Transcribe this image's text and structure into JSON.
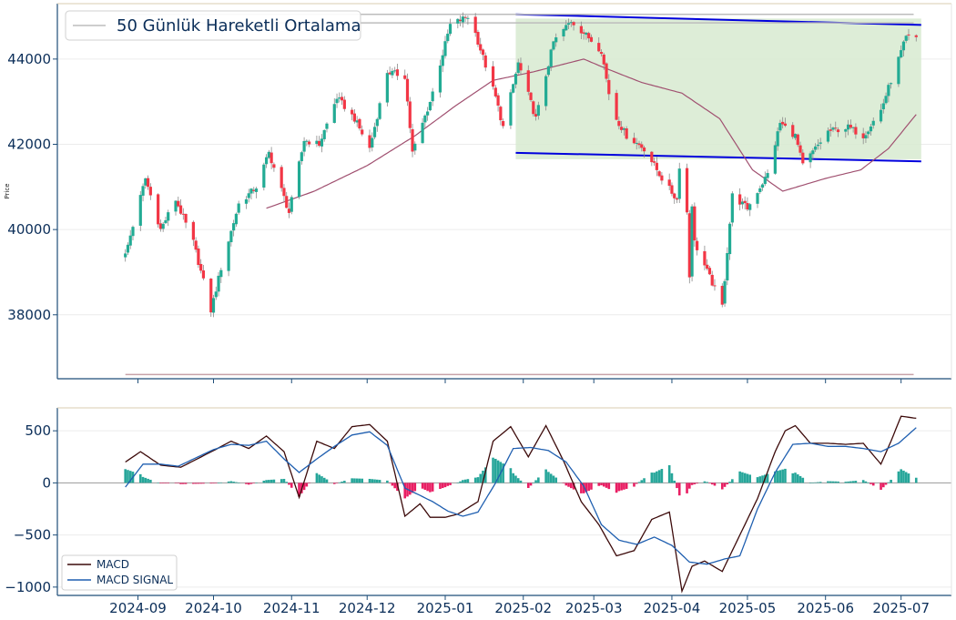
{
  "chart_data": [
    {
      "type": "candlestick",
      "ylabel": "Price",
      "ylim": [
        36500,
        45300
      ],
      "yticks": [
        38000,
        40000,
        42000,
        44000
      ],
      "x_tick_labels": [
        "2024-09",
        "2024-10",
        "2024-11",
        "2024-12",
        "2025-01",
        "2025-02",
        "2025-03",
        "2025-04",
        "2025-05",
        "2025-06",
        "2025-07"
      ],
      "legend": {
        "label": "50 Günlük Hareketli Ortalama",
        "position": "top-left"
      },
      "price_anchors": {
        "dates": [
          "2024-08-27",
          "2024-08-30",
          "2024-09-04",
          "2024-09-10",
          "2024-09-16",
          "2024-09-23",
          "2024-09-30",
          "2024-10-04",
          "2024-10-11",
          "2024-10-18",
          "2024-10-23",
          "2024-10-31",
          "2024-11-06",
          "2024-11-12",
          "2024-11-19",
          "2024-11-26",
          "2024-12-02",
          "2024-12-09",
          "2024-12-16",
          "2024-12-19",
          "2024-12-26",
          "2025-01-03",
          "2025-01-10",
          "2025-01-13",
          "2025-01-21",
          "2025-01-24",
          "2025-01-30",
          "2025-02-06",
          "2025-02-13",
          "2025-02-20",
          "2025-02-27",
          "2025-03-04",
          "2025-03-07",
          "2025-03-10",
          "2025-03-14",
          "2025-03-21",
          "2025-03-28",
          "2025-04-03",
          "2025-04-04",
          "2025-04-07",
          "2025-04-08",
          "2025-04-09",
          "2025-04-10",
          "2025-04-21",
          "2025-04-25",
          "2025-05-01",
          "2025-05-09",
          "2025-05-14",
          "2025-05-20",
          "2025-05-23",
          "2025-06-02",
          "2025-06-10",
          "2025-06-16",
          "2025-06-23",
          "2025-06-27",
          "2025-07-03",
          "2025-07-07"
        ],
        "close": [
          39400,
          40100,
          41200,
          40000,
          40700,
          39700,
          38100,
          39100,
          40600,
          41000,
          41800,
          40400,
          42100,
          42000,
          43100,
          42600,
          41900,
          43700,
          43600,
          41800,
          43000,
          44800,
          45000,
          44600,
          43100,
          42400,
          43900,
          42600,
          44400,
          44900,
          44500,
          44200,
          43200,
          42600,
          42200,
          41900,
          41200,
          40700,
          41500,
          40400,
          38900,
          40600,
          39700,
          38200,
          40800,
          40500,
          41300,
          42500,
          42200,
          41500,
          42300,
          42400,
          42200,
          42800,
          43500,
          44500,
          44500
        ]
      },
      "ma50_anchors": {
        "dates": [
          "2024-10-22",
          "2024-11-10",
          "2024-12-01",
          "2024-12-20",
          "2025-01-05",
          "2025-01-20",
          "2025-02-05",
          "2025-02-25",
          "2025-03-05",
          "2025-03-20",
          "2025-04-05",
          "2025-04-20",
          "2025-05-03",
          "2025-05-15",
          "2025-06-01",
          "2025-06-15",
          "2025-06-26",
          "2025-07-07"
        ],
        "values": [
          40500,
          40900,
          41500,
          42200,
          42900,
          43500,
          43700,
          44000,
          43800,
          43450,
          43200,
          42600,
          41400,
          40900,
          41200,
          41400,
          41900,
          42700
        ]
      },
      "support_resistance_lines": [
        {
          "from": [
            "2024-08-27",
            45050
          ],
          "to": [
            "2025-07-06",
            45050
          ]
        },
        {
          "from": [
            "2024-08-27",
            44850
          ],
          "to": [
            "2025-07-06",
            44850
          ]
        },
        {
          "from": [
            "2024-08-27",
            36600
          ],
          "to": [
            "2025-07-06",
            36600
          ]
        }
      ],
      "channel": {
        "upper": {
          "from": [
            "2025-01-29",
            45050
          ],
          "to": [
            "2025-07-09",
            44800
          ]
        },
        "lower": {
          "from": [
            "2025-01-29",
            41800
          ],
          "to": [
            "2025-07-09",
            41600
          ]
        },
        "fill_x": [
          "2025-01-29",
          "2025-07-09"
        ],
        "fill_y": [
          41650,
          44950
        ]
      },
      "colors": {
        "up": "#22ab94",
        "down": "#f23645",
        "ma50": "#a05070",
        "channel_line": "#0000dd",
        "channel_fill": "#d7ead0",
        "level_line": "#bdbdbd",
        "support_line": "#c8a2a8",
        "axis": "#1f4e79"
      }
    },
    {
      "type": "macd",
      "ylim": [
        -1080,
        720
      ],
      "yticks": [
        -1000,
        -500,
        0,
        500
      ],
      "x_tick_labels": [
        "2024-09",
        "2024-10",
        "2024-11",
        "2024-12",
        "2025-01",
        "2025-02",
        "2025-03",
        "2025-04",
        "2025-05",
        "2025-06",
        "2025-07"
      ],
      "series": [
        {
          "name": "MACD",
          "color": "#3c0a0a",
          "anchors": {
            "dates": [
              "2024-08-27",
              "2024-09-02",
              "2024-09-10",
              "2024-09-18",
              "2024-10-01",
              "2024-10-08",
              "2024-10-15",
              "2024-10-22",
              "2024-10-29",
              "2024-11-04",
              "2024-11-11",
              "2024-11-18",
              "2024-11-25",
              "2024-12-02",
              "2024-12-09",
              "2024-12-16",
              "2024-12-22",
              "2024-12-26",
              "2025-01-01",
              "2025-01-06",
              "2025-01-14",
              "2025-01-20",
              "2025-01-27",
              "2025-02-03",
              "2025-02-10",
              "2025-02-17",
              "2025-02-24",
              "2025-03-03",
              "2025-03-10",
              "2025-03-17",
              "2025-03-24",
              "2025-03-31",
              "2025-04-05",
              "2025-04-09",
              "2025-04-14",
              "2025-04-21",
              "2025-04-28",
              "2025-05-05",
              "2025-05-12",
              "2025-05-16",
              "2025-05-20",
              "2025-05-26",
              "2025-06-02",
              "2025-06-09",
              "2025-06-16",
              "2025-06-23",
              "2025-06-27",
              "2025-07-01",
              "2025-07-07"
            ],
            "values": [
              200,
              300,
              170,
              150,
              310,
              400,
              330,
              450,
              300,
              -140,
              400,
              330,
              540,
              560,
              400,
              -320,
              -200,
              -330,
              -330,
              -300,
              -180,
              400,
              540,
              250,
              550,
              210,
              -180,
              -400,
              -700,
              -650,
              -350,
              -280,
              -1040,
              -800,
              -750,
              -850,
              -500,
              -150,
              300,
              500,
              550,
              380,
              380,
              370,
              380,
              180,
              400,
              640,
              620
            ]
          }
        },
        {
          "name": "MACD SIGNAL",
          "color": "#1f5fb0",
          "anchors": {
            "dates": [
              "2024-08-27",
              "2024-09-03",
              "2024-09-10",
              "2024-09-17",
              "2024-10-01",
              "2024-10-08",
              "2024-10-15",
              "2024-10-22",
              "2024-10-29",
              "2024-11-04",
              "2024-11-11",
              "2024-11-18",
              "2024-11-25",
              "2024-12-02",
              "2024-12-09",
              "2024-12-16",
              "2024-12-22",
              "2024-12-27",
              "2025-01-02",
              "2025-01-08",
              "2025-01-14",
              "2025-01-21",
              "2025-01-28",
              "2025-02-04",
              "2025-02-11",
              "2025-02-18",
              "2025-02-25",
              "2025-03-04",
              "2025-03-11",
              "2025-03-18",
              "2025-03-25",
              "2025-04-01",
              "2025-04-08",
              "2025-04-15",
              "2025-04-22",
              "2025-04-28",
              "2025-05-05",
              "2025-05-12",
              "2025-05-19",
              "2025-05-26",
              "2025-06-02",
              "2025-06-09",
              "2025-06-16",
              "2025-06-23",
              "2025-06-30",
              "2025-07-07"
            ],
            "values": [
              -40,
              180,
              180,
              160,
              320,
              370,
              360,
              400,
              230,
              100,
              230,
              350,
              460,
              490,
              360,
              -50,
              -120,
              -180,
              -270,
              -320,
              -280,
              0,
              330,
              340,
              310,
              200,
              -30,
              -400,
              -550,
              -590,
              -520,
              -600,
              -760,
              -780,
              -730,
              -700,
              -250,
              100,
              370,
              380,
              350,
              350,
              330,
              300,
              380,
              530
            ]
          }
        }
      ],
      "histogram_colors": {
        "positive": "#26a69a",
        "negative": "#e91e63"
      },
      "legend": {
        "position": "lower-left"
      }
    }
  ]
}
